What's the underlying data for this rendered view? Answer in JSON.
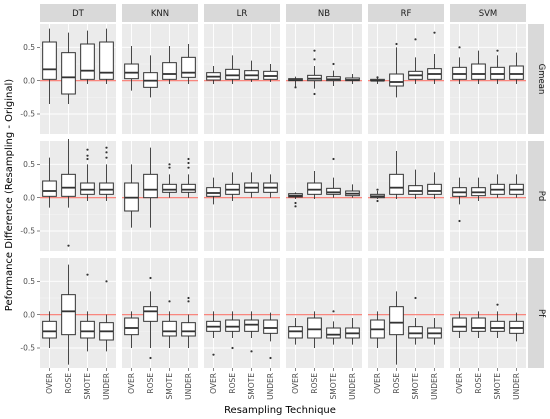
{
  "chart_data": {
    "type": "boxplot",
    "ylabel": "Peformance Difference (Resampling - Original)",
    "xlabel": "Resampling Technique",
    "categories": [
      "OVER",
      "ROSE",
      "SMOTE",
      "UNDER"
    ],
    "columns": [
      "DT",
      "KNN",
      "LR",
      "NB",
      "RF",
      "SVM"
    ],
    "rows": [
      "Gmean",
      "Pd",
      "Pf"
    ],
    "y_ticks": [
      -0.5,
      0.0,
      0.5
    ],
    "y_tick_labels": [
      "-0.5",
      "0.0",
      "0.5"
    ],
    "ylim": [
      -0.8,
      0.85
    ],
    "reference_line": 0,
    "colors": {
      "reference": "#f8766d",
      "panel": "#ebebeb",
      "strip": "#d9d9d9"
    },
    "facets": [
      {
        "row": "Gmean",
        "col": "DT",
        "boxes": [
          {
            "min": -0.35,
            "q1": 0.02,
            "median": 0.17,
            "q3": 0.58,
            "max": 0.78,
            "outliers": []
          },
          {
            "min": -0.35,
            "q1": -0.2,
            "median": 0.05,
            "q3": 0.42,
            "max": 0.72,
            "outliers": []
          },
          {
            "min": -0.05,
            "q1": 0.02,
            "median": 0.15,
            "q3": 0.55,
            "max": 0.75,
            "outliers": []
          },
          {
            "min": -0.05,
            "q1": 0.02,
            "median": 0.12,
            "q3": 0.58,
            "max": 0.78,
            "outliers": []
          }
        ]
      },
      {
        "row": "Gmean",
        "col": "KNN",
        "boxes": [
          {
            "min": -0.15,
            "q1": 0.03,
            "median": 0.12,
            "q3": 0.25,
            "max": 0.52,
            "outliers": []
          },
          {
            "min": -0.25,
            "q1": -0.1,
            "median": 0.0,
            "q3": 0.12,
            "max": 0.38,
            "outliers": []
          },
          {
            "min": -0.05,
            "q1": 0.02,
            "median": 0.1,
            "q3": 0.27,
            "max": 0.52,
            "outliers": []
          },
          {
            "min": -0.05,
            "q1": 0.05,
            "median": 0.12,
            "q3": 0.35,
            "max": 0.55,
            "outliers": []
          }
        ]
      },
      {
        "row": "Gmean",
        "col": "LR",
        "boxes": [
          {
            "min": -0.05,
            "q1": 0.01,
            "median": 0.06,
            "q3": 0.12,
            "max": 0.22,
            "outliers": []
          },
          {
            "min": -0.05,
            "q1": 0.02,
            "median": 0.08,
            "q3": 0.17,
            "max": 0.38,
            "outliers": []
          },
          {
            "min": -0.02,
            "q1": 0.02,
            "median": 0.08,
            "q3": 0.15,
            "max": 0.3,
            "outliers": []
          },
          {
            "min": -0.02,
            "q1": 0.02,
            "median": 0.07,
            "q3": 0.14,
            "max": 0.25,
            "outliers": []
          }
        ]
      },
      {
        "row": "Gmean",
        "col": "NB",
        "boxes": [
          {
            "min": -0.1,
            "q1": 0.0,
            "median": 0.01,
            "q3": 0.03,
            "max": 0.06,
            "outliers": [
              -0.1
            ]
          },
          {
            "min": -0.12,
            "q1": 0.0,
            "median": 0.03,
            "q3": 0.08,
            "max": 0.22,
            "outliers": [
              0.45,
              0.32,
              -0.2
            ]
          },
          {
            "min": -0.08,
            "q1": 0.0,
            "median": 0.02,
            "q3": 0.06,
            "max": 0.15,
            "outliers": [
              0.25
            ]
          },
          {
            "min": -0.05,
            "q1": 0.0,
            "median": 0.01,
            "q3": 0.04,
            "max": 0.1,
            "outliers": []
          }
        ]
      },
      {
        "row": "Gmean",
        "col": "RF",
        "boxes": [
          {
            "min": -0.05,
            "q1": 0.0,
            "median": 0.0,
            "q3": 0.02,
            "max": 0.04,
            "outliers": [
              0.05
            ]
          },
          {
            "min": -0.25,
            "q1": -0.08,
            "median": -0.02,
            "q3": 0.1,
            "max": 0.5,
            "outliers": [
              0.55
            ]
          },
          {
            "min": -0.05,
            "q1": 0.02,
            "median": 0.08,
            "q3": 0.14,
            "max": 0.35,
            "outliers": [
              0.62
            ]
          },
          {
            "min": -0.05,
            "q1": 0.02,
            "median": 0.1,
            "q3": 0.18,
            "max": 0.4,
            "outliers": [
              0.72
            ]
          }
        ]
      },
      {
        "row": "Gmean",
        "col": "SVM",
        "boxes": [
          {
            "min": -0.05,
            "q1": 0.02,
            "median": 0.1,
            "q3": 0.2,
            "max": 0.35,
            "outliers": [
              0.5
            ]
          },
          {
            "min": -0.05,
            "q1": 0.02,
            "median": 0.1,
            "q3": 0.25,
            "max": 0.45,
            "outliers": []
          },
          {
            "min": -0.05,
            "q1": 0.02,
            "median": 0.1,
            "q3": 0.2,
            "max": 0.38,
            "outliers": [
              0.45
            ]
          },
          {
            "min": -0.05,
            "q1": 0.02,
            "median": 0.1,
            "q3": 0.22,
            "max": 0.42,
            "outliers": []
          }
        ]
      },
      {
        "row": "Pd",
        "col": "DT",
        "boxes": [
          {
            "min": -0.15,
            "q1": 0.02,
            "median": 0.1,
            "q3": 0.25,
            "max": 0.6,
            "outliers": []
          },
          {
            "min": -0.15,
            "q1": 0.02,
            "median": 0.15,
            "q3": 0.35,
            "max": 0.88,
            "outliers": [
              -0.72
            ]
          },
          {
            "min": -0.05,
            "q1": 0.05,
            "median": 0.12,
            "q3": 0.22,
            "max": 0.5,
            "outliers": [
              0.58,
              0.63,
              0.72
            ]
          },
          {
            "min": -0.05,
            "q1": 0.05,
            "median": 0.12,
            "q3": 0.22,
            "max": 0.5,
            "outliers": [
              0.6,
              0.68,
              0.75
            ]
          }
        ]
      },
      {
        "row": "Pd",
        "col": "KNN",
        "boxes": [
          {
            "min": -0.45,
            "q1": -0.2,
            "median": 0.0,
            "q3": 0.22,
            "max": 0.5,
            "outliers": []
          },
          {
            "min": -0.45,
            "q1": 0.0,
            "median": 0.12,
            "q3": 0.35,
            "max": 0.75,
            "outliers": []
          },
          {
            "min": 0.0,
            "q1": 0.08,
            "median": 0.12,
            "q3": 0.2,
            "max": 0.35,
            "outliers": [
              0.45,
              0.5
            ]
          },
          {
            "min": 0.0,
            "q1": 0.08,
            "median": 0.12,
            "q3": 0.2,
            "max": 0.35,
            "outliers": [
              0.45,
              0.52,
              0.58
            ]
          }
        ]
      },
      {
        "row": "Pd",
        "col": "LR",
        "boxes": [
          {
            "min": -0.1,
            "q1": 0.02,
            "median": 0.07,
            "q3": 0.15,
            "max": 0.3,
            "outliers": []
          },
          {
            "min": -0.05,
            "q1": 0.05,
            "median": 0.12,
            "q3": 0.2,
            "max": 0.38,
            "outliers": []
          },
          {
            "min": 0.0,
            "q1": 0.08,
            "median": 0.15,
            "q3": 0.22,
            "max": 0.38,
            "outliers": []
          },
          {
            "min": 0.0,
            "q1": 0.08,
            "median": 0.15,
            "q3": 0.22,
            "max": 0.35,
            "outliers": []
          }
        ]
      },
      {
        "row": "Pd",
        "col": "NB",
        "boxes": [
          {
            "min": -0.02,
            "q1": 0.01,
            "median": 0.03,
            "q3": 0.06,
            "max": 0.08,
            "outliers": [
              -0.08,
              -0.13
            ]
          },
          {
            "min": -0.02,
            "q1": 0.05,
            "median": 0.12,
            "q3": 0.22,
            "max": 0.4,
            "outliers": []
          },
          {
            "min": 0.0,
            "q1": 0.05,
            "median": 0.08,
            "q3": 0.14,
            "max": 0.3,
            "outliers": [
              0.58
            ]
          },
          {
            "min": 0.0,
            "q1": 0.03,
            "median": 0.06,
            "q3": 0.1,
            "max": 0.2,
            "outliers": []
          }
        ]
      },
      {
        "row": "Pd",
        "col": "RF",
        "boxes": [
          {
            "min": -0.02,
            "q1": 0.0,
            "median": 0.02,
            "q3": 0.05,
            "max": 0.1,
            "outliers": [
              -0.05,
              0.12
            ]
          },
          {
            "min": -0.02,
            "q1": 0.05,
            "median": 0.15,
            "q3": 0.35,
            "max": 0.7,
            "outliers": []
          },
          {
            "min": -0.02,
            "q1": 0.05,
            "median": 0.1,
            "q3": 0.18,
            "max": 0.42,
            "outliers": []
          },
          {
            "min": -0.02,
            "q1": 0.05,
            "median": 0.1,
            "q3": 0.2,
            "max": 0.38,
            "outliers": []
          }
        ]
      },
      {
        "row": "Pd",
        "col": "SVM",
        "boxes": [
          {
            "min": -0.1,
            "q1": 0.02,
            "median": 0.08,
            "q3": 0.15,
            "max": 0.3,
            "outliers": [
              -0.35
            ]
          },
          {
            "min": -0.05,
            "q1": 0.03,
            "median": 0.08,
            "q3": 0.15,
            "max": 0.3,
            "outliers": []
          },
          {
            "min": 0.0,
            "q1": 0.05,
            "median": 0.12,
            "q3": 0.2,
            "max": 0.35,
            "outliers": []
          },
          {
            "min": 0.0,
            "q1": 0.05,
            "median": 0.12,
            "q3": 0.2,
            "max": 0.35,
            "outliers": []
          }
        ]
      },
      {
        "row": "Pf",
        "col": "DT",
        "boxes": [
          {
            "min": -0.5,
            "q1": -0.35,
            "median": -0.25,
            "q3": -0.1,
            "max": 0.05,
            "outliers": []
          },
          {
            "min": -0.75,
            "q1": -0.3,
            "median": 0.05,
            "q3": 0.3,
            "max": 0.75,
            "outliers": []
          },
          {
            "min": -0.55,
            "q1": -0.35,
            "median": -0.25,
            "q3": -0.1,
            "max": 0.05,
            "outliers": [
              0.6
            ]
          },
          {
            "min": -0.55,
            "q1": -0.38,
            "median": -0.25,
            "q3": -0.12,
            "max": 0.0,
            "outliers": [
              0.5
            ]
          }
        ]
      },
      {
        "row": "Pf",
        "col": "KNN",
        "boxes": [
          {
            "min": -0.5,
            "q1": -0.3,
            "median": -0.2,
            "q3": -0.05,
            "max": 0.05,
            "outliers": []
          },
          {
            "min": -0.5,
            "q1": -0.1,
            "median": 0.05,
            "q3": 0.12,
            "max": 0.35,
            "outliers": [
              -0.65,
              0.55
            ]
          },
          {
            "min": -0.5,
            "q1": -0.32,
            "median": -0.25,
            "q3": -0.1,
            "max": 0.05,
            "outliers": [
              0.2
            ]
          },
          {
            "min": -0.5,
            "q1": -0.32,
            "median": -0.25,
            "q3": -0.12,
            "max": 0.0,
            "outliers": [
              0.2,
              0.25
            ]
          }
        ]
      },
      {
        "row": "Pf",
        "col": "LR",
        "boxes": [
          {
            "min": -0.35,
            "q1": -0.25,
            "median": -0.18,
            "q3": -0.1,
            "max": 0.05,
            "outliers": [
              -0.6
            ]
          },
          {
            "min": -0.35,
            "q1": -0.25,
            "median": -0.18,
            "q3": -0.08,
            "max": 0.05,
            "outliers": [
              -0.5
            ]
          },
          {
            "min": -0.35,
            "q1": -0.25,
            "median": -0.15,
            "q3": -0.08,
            "max": 0.05,
            "outliers": [
              -0.55
            ]
          },
          {
            "min": -0.4,
            "q1": -0.28,
            "median": -0.2,
            "q3": -0.08,
            "max": 0.03,
            "outliers": [
              -0.65
            ]
          }
        ]
      },
      {
        "row": "Pf",
        "col": "NB",
        "boxes": [
          {
            "min": -0.45,
            "q1": -0.35,
            "median": -0.25,
            "q3": -0.18,
            "max": -0.05,
            "outliers": []
          },
          {
            "min": -0.5,
            "q1": -0.35,
            "median": -0.22,
            "q3": -0.05,
            "max": 0.05,
            "outliers": []
          },
          {
            "min": -0.45,
            "q1": -0.35,
            "median": -0.3,
            "q3": -0.2,
            "max": -0.1,
            "outliers": [
              0.05
            ]
          },
          {
            "min": -0.45,
            "q1": -0.35,
            "median": -0.28,
            "q3": -0.2,
            "max": -0.05,
            "outliers": []
          }
        ]
      },
      {
        "row": "Pf",
        "col": "RF",
        "boxes": [
          {
            "min": -0.5,
            "q1": -0.35,
            "median": -0.22,
            "q3": -0.08,
            "max": 0.05,
            "outliers": []
          },
          {
            "min": -0.75,
            "q1": -0.3,
            "median": -0.12,
            "q3": 0.12,
            "max": 0.35,
            "outliers": []
          },
          {
            "min": -0.45,
            "q1": -0.35,
            "median": -0.28,
            "q3": -0.18,
            "max": -0.05,
            "outliers": [
              0.25
            ]
          },
          {
            "min": -0.45,
            "q1": -0.35,
            "median": -0.28,
            "q3": -0.2,
            "max": -0.05,
            "outliers": []
          }
        ]
      },
      {
        "row": "Pf",
        "col": "SVM",
        "boxes": [
          {
            "min": -0.35,
            "q1": -0.25,
            "median": -0.18,
            "q3": -0.05,
            "max": 0.05,
            "outliers": []
          },
          {
            "min": -0.35,
            "q1": -0.25,
            "median": -0.2,
            "q3": -0.05,
            "max": 0.05,
            "outliers": []
          },
          {
            "min": -0.35,
            "q1": -0.25,
            "median": -0.2,
            "q3": -0.1,
            "max": 0.05,
            "outliers": [
              0.15
            ]
          },
          {
            "min": -0.4,
            "q1": -0.28,
            "median": -0.2,
            "q3": -0.1,
            "max": 0.03,
            "outliers": []
          }
        ]
      }
    ]
  }
}
